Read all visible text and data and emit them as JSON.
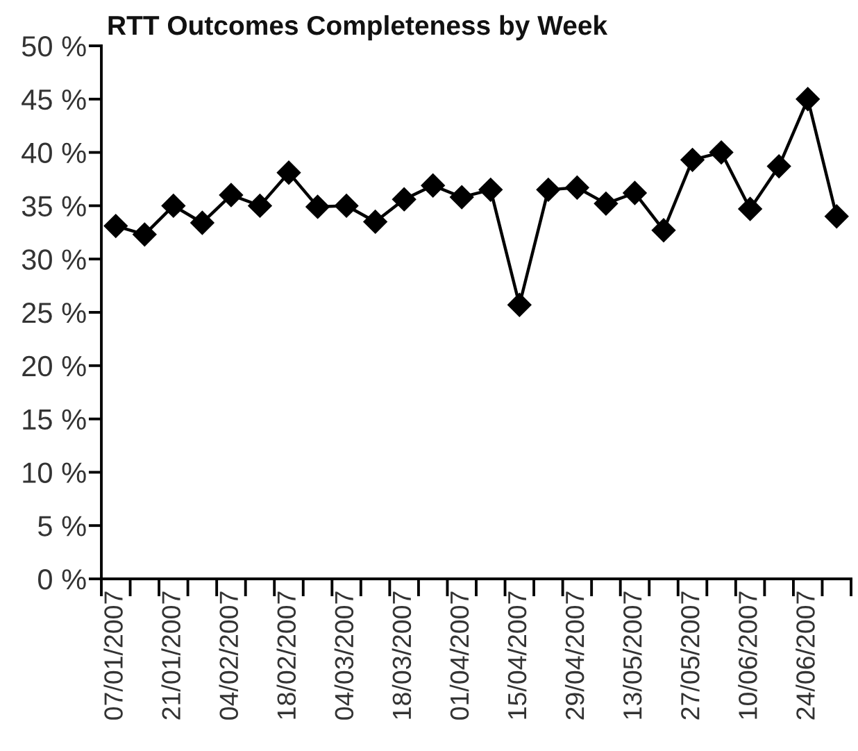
{
  "chart_data": {
    "type": "line",
    "title": "RTT Outcomes Completeness by Week",
    "categories": [
      "07/01/2007",
      null,
      "21/01/2007",
      null,
      "04/02/2007",
      null,
      "18/02/2007",
      null,
      "04/03/2007",
      null,
      "18/03/2007",
      null,
      "01/04/2007",
      null,
      "15/04/2007",
      null,
      "29/04/2007",
      null,
      "13/05/2007",
      null,
      "27/05/2007",
      null,
      "10/06/2007",
      null,
      "24/06/2007",
      null
    ],
    "series": [
      {
        "color": "#000000",
        "values": [
          33.1,
          32.3,
          35.0,
          33.4,
          36.0,
          35.0,
          38.1,
          34.9,
          35.0,
          33.5,
          35.6,
          36.9,
          35.8,
          36.5,
          25.7,
          36.5,
          36.7,
          35.2,
          36.2,
          32.7,
          39.3,
          40.0,
          34.7,
          38.7,
          45.0,
          34.0
        ]
      }
    ],
    "ylim": [
      0,
      50
    ],
    "yticks": [
      {
        "value": 0,
        "label": "0 %"
      },
      {
        "value": 5,
        "label": "5 %"
      },
      {
        "value": 10,
        "label": "10 %"
      },
      {
        "value": 15,
        "label": "15 %"
      },
      {
        "value": 20,
        "label": "20 %"
      },
      {
        "value": 25,
        "label": "25 %"
      },
      {
        "value": 30,
        "label": "30 %"
      },
      {
        "value": 35,
        "label": "35 %"
      },
      {
        "value": 40,
        "label": "40 %"
      },
      {
        "value": 45,
        "label": "45 %"
      },
      {
        "value": 50,
        "label": "50 %"
      }
    ],
    "marker": "diamond",
    "line_style": "solid"
  }
}
